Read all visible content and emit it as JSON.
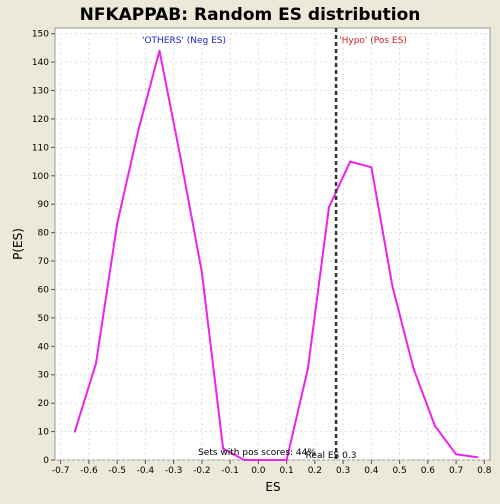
{
  "chart_data": {
    "type": "line",
    "title": "NFKAPPAB: Random ES distribution",
    "xlabel": "ES",
    "ylabel": "P(ES)",
    "xlim": [
      -0.72,
      0.82
    ],
    "ylim": [
      0,
      152
    ],
    "x_ticks": [
      -0.7,
      -0.6,
      -0.5,
      -0.4,
      -0.3,
      -0.2,
      -0.1,
      0.0,
      0.1,
      0.2,
      0.3,
      0.4,
      0.5,
      0.6,
      0.7,
      0.8
    ],
    "x_tick_labels": [
      "-0.7",
      "-0.6",
      "-0.5",
      "-0.4",
      "-0.3",
      "-0.2",
      "-0.1",
      "0.0",
      "0.1",
      "0.2",
      "0.3",
      "0.4",
      "0.5",
      "0.6",
      "0.7",
      "0.8"
    ],
    "y_ticks": [
      0,
      10,
      20,
      30,
      40,
      50,
      60,
      70,
      80,
      90,
      100,
      110,
      120,
      130,
      140,
      150
    ],
    "y_tick_labels": [
      "0",
      "10",
      "20",
      "30",
      "40",
      "50",
      "60",
      "70",
      "80",
      "90",
      "100",
      "110",
      "120",
      "130",
      "140",
      "150"
    ],
    "grid": true,
    "series": [
      {
        "color": "#ee22ee",
        "x": [
          -0.65,
          -0.575,
          -0.5,
          -0.425,
          -0.35,
          -0.275,
          -0.2,
          -0.125,
          -0.05,
          0.025,
          0.1,
          0.175,
          0.25,
          0.325,
          0.4,
          0.475,
          0.55,
          0.625,
          0.7,
          0.775
        ],
        "y": [
          10,
          34,
          83,
          116,
          144,
          106,
          66,
          4,
          0,
          0,
          0,
          32,
          89,
          105,
          103,
          61,
          32,
          12,
          2,
          1
        ]
      }
    ],
    "reference_line": {
      "x": 0.275,
      "style": "dashed",
      "color": "#333333"
    },
    "annotations": {
      "neg_label": "'OTHERS' (Neg ES)",
      "pos_label": "'Hypo' (Pos ES)",
      "pos_scores_text": "Sets with pos scores: 44%",
      "real_es_text": "Real ES 0.3"
    },
    "colors": {
      "background": "#ece9d8",
      "plot_background": "#ffffff",
      "neg_label": "#2222cc",
      "pos_label": "#cc2222"
    }
  }
}
